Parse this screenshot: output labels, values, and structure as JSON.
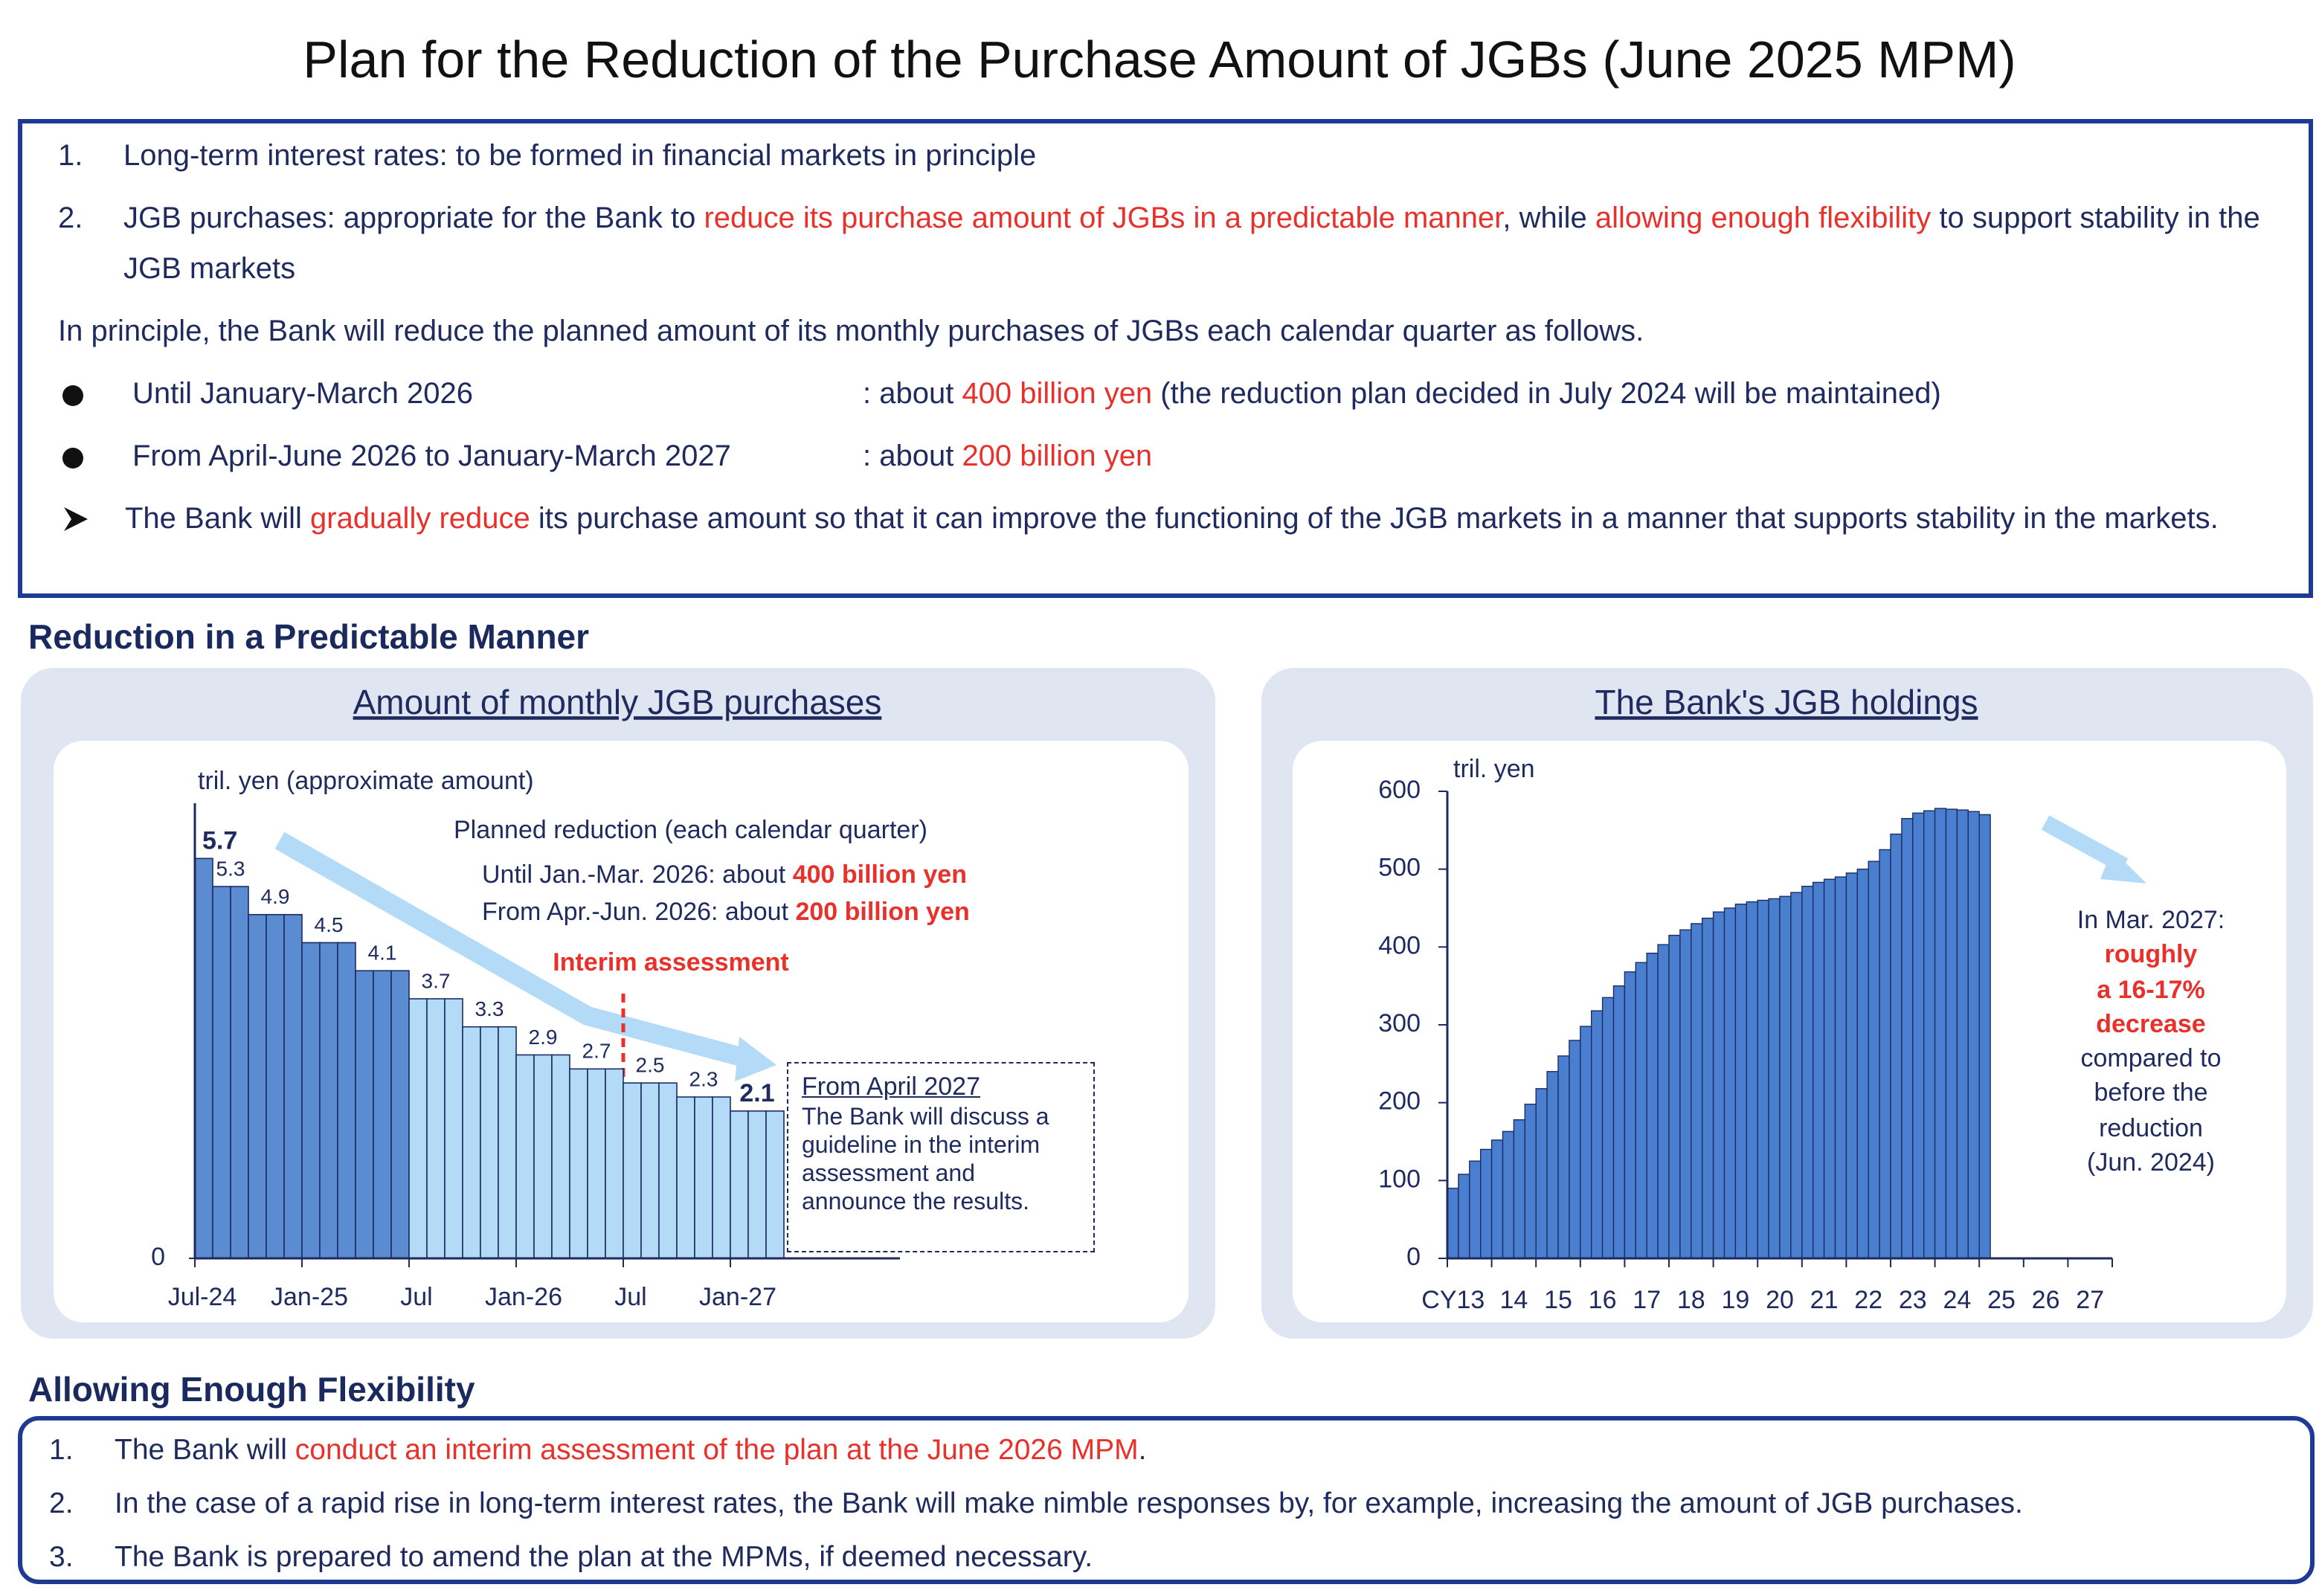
{
  "title": "Plan for the Reduction of the Purchase Amount of JGBs (June 2025 MPM)",
  "policy": {
    "items": [
      {
        "number": "1.",
        "segments": [
          {
            "text": "Long-term interest rates: to be formed in financial markets in principle"
          }
        ]
      },
      {
        "number": "2.",
        "segments": [
          {
            "text": "JGB purchases: appropriate for the Bank to "
          },
          {
            "text": "reduce its purchase amount of JGBs in a predictable manner",
            "color": "#e8312a"
          },
          {
            "text": ", while "
          },
          {
            "text": "allowing enough flexibility",
            "color": "#e8312a"
          },
          {
            "text": " to support stability in the JGB markets"
          }
        ]
      }
    ],
    "intro": {
      "segments": [
        {
          "text": "In principle, the Bank will reduce the planned amount of its monthly purchases of JGBs each calendar quarter as follows."
        }
      ]
    },
    "bullets": [
      {
        "period": "Until January-March 2026",
        "segments": [
          {
            "text": ": about "
          },
          {
            "text": "400 billion yen",
            "color": "#e8312a"
          },
          {
            "text": " (the reduction plan decided in July 2024 will be maintained)"
          }
        ]
      },
      {
        "period": "From April-June 2026 to January-March 2027",
        "segments": [
          {
            "text": ": about "
          },
          {
            "text": "200 billion yen",
            "color": "#e8312a"
          }
        ]
      }
    ],
    "note": {
      "segments": [
        {
          "text": "The Bank will "
        },
        {
          "text": "gradually reduce",
          "color": "#e8312a"
        },
        {
          "text": " its purchase amount so that it can improve the functioning of the JGB markets in a manner that supports stability in the markets."
        }
      ]
    }
  },
  "sections": [
    "Reduction in a Predictable Manner",
    "Allowing Enough Flexibility"
  ],
  "chart_data": [
    {
      "type": "bar",
      "title": "Amount of monthly JGB purchases",
      "y_label": "tril. yen (approximate amount)",
      "categories": [
        "Jul-24",
        null,
        null,
        null,
        null,
        null,
        "Jan-25",
        null,
        null,
        null,
        null,
        null,
        "Jul",
        null,
        null,
        null,
        null,
        null,
        "Jan-26",
        null,
        null,
        null,
        null,
        null,
        "Jul",
        null,
        null,
        null,
        null,
        null,
        "Jan-27",
        null,
        null
      ],
      "series": [
        {
          "color": "#5b8bd0",
          "values": [
            5.7,
            5.3,
            5.3,
            4.9,
            4.9,
            4.9,
            4.5,
            4.5,
            4.5,
            4.1,
            4.1,
            4.1,
            null,
            null,
            null,
            null,
            null,
            null,
            null,
            null,
            null,
            null,
            null,
            null,
            null,
            null,
            null,
            null,
            null,
            null,
            null,
            null,
            null
          ]
        },
        {
          "color": "#b3dbf7",
          "values": [
            null,
            null,
            null,
            null,
            null,
            null,
            null,
            null,
            null,
            null,
            null,
            null,
            3.7,
            3.7,
            3.7,
            3.3,
            3.3,
            3.3,
            2.9,
            2.9,
            2.9,
            2.7,
            2.7,
            2.7,
            2.5,
            2.5,
            2.5,
            2.3,
            2.3,
            2.3,
            2.1,
            2.1,
            2.1
          ]
        }
      ],
      "ylim": [
        0,
        6
      ],
      "yticks": [
        0
      ],
      "annotations": {
        "planned_reduction": {
          "heading": "Planned reduction (each calendar quarter)",
          "lines": [
            {
              "segments": [
                {
                  "text": "Until Jan.-Mar. 2026: about "
                },
                {
                  "text": "400 billion yen",
                  "color": "#e8312a"
                }
              ]
            },
            {
              "segments": [
                {
                  "text": "From Apr.-Jun. 2026: about "
                },
                {
                  "text": "200 billion yen",
                  "color": "#e8312a"
                }
              ]
            }
          ]
        },
        "interim": "Interim assessment",
        "box": {
          "heading": "From April 2027",
          "text": "The Bank will discuss a guideline in the interim assessment and announce the results."
        }
      }
    },
    {
      "type": "bar",
      "title": "The Bank's JGB holdings",
      "y_label": "tril. yen",
      "categories": [
        "CY13",
        null,
        null,
        null,
        "14",
        null,
        null,
        null,
        "15",
        null,
        null,
        null,
        "16",
        null,
        null,
        null,
        "17",
        null,
        null,
        null,
        "18",
        null,
        null,
        null,
        "19",
        null,
        null,
        null,
        "20",
        null,
        null,
        null,
        "21",
        null,
        null,
        null,
        "22",
        null,
        null,
        null,
        "23",
        null,
        null,
        null,
        "24",
        null,
        null,
        null,
        "25",
        null,
        null,
        null,
        "26",
        null,
        null,
        null,
        "27",
        null,
        null,
        null
      ],
      "values": [
        90,
        108,
        125,
        140,
        152,
        163,
        178,
        198,
        218,
        240,
        260,
        280,
        298,
        318,
        335,
        350,
        368,
        380,
        392,
        403,
        415,
        422,
        430,
        437,
        445,
        450,
        455,
        458,
        460,
        462,
        465,
        470,
        478,
        483,
        487,
        490,
        495,
        500,
        510,
        525,
        545,
        565,
        572,
        575,
        578,
        577,
        576,
        574,
        570,
        null,
        null,
        null,
        null,
        null,
        null,
        null,
        null,
        null,
        null,
        null
      ],
      "color": "#4a7fd0",
      "ylim": [
        0,
        600
      ],
      "yticks": [
        0,
        100,
        200,
        300,
        400,
        500,
        600
      ],
      "annotation": {
        "lines": [
          {
            "text": "In Mar. 2027:"
          },
          {
            "text": "roughly",
            "color": "#e8312a"
          },
          {
            "text": "a 16-17%",
            "color": "#e8312a"
          },
          {
            "text": "decrease",
            "color": "#e8312a"
          },
          {
            "text": "compared to"
          },
          {
            "text": "before the"
          },
          {
            "text": "reduction"
          },
          {
            "text": "(Jun. 2024)"
          }
        ]
      }
    }
  ],
  "flexibility": {
    "items": [
      {
        "number": "1.",
        "segments": [
          {
            "text": "The Bank will "
          },
          {
            "text": "conduct an interim assessment of the plan at the June 2026 MPM",
            "color": "#e8312a"
          },
          {
            "text": "."
          }
        ]
      },
      {
        "number": "2.",
        "segments": [
          {
            "text": "In the case of a rapid rise in long-term interest rates, the Bank will make nimble responses by, for example, increasing the amount of JGB purchases."
          }
        ]
      },
      {
        "number": "3.",
        "segments": [
          {
            "text": "The Bank is prepared to amend the plan at the MPMs, if deemed necessary."
          }
        ]
      }
    ]
  }
}
